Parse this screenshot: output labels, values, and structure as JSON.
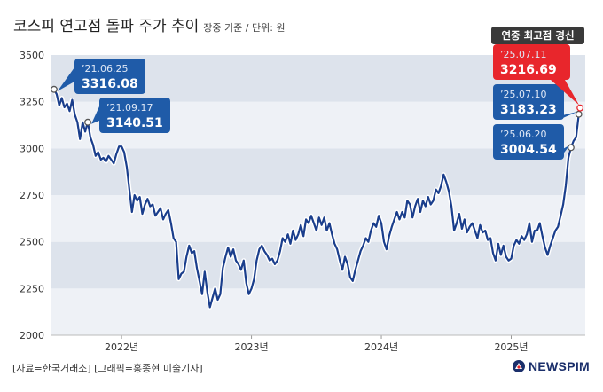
{
  "header": {
    "title": "코스피 연고점 돌파 주가 추이",
    "subtitle": "장중 기준 / 단위: 원"
  },
  "footer": {
    "source": "[자료=한국거래소] [그래픽=홍종현 미술기자]",
    "logo": "NEWSPIM"
  },
  "chart_data": {
    "type": "line",
    "title": "코스피 연고점 돌파 주가 추이",
    "subtitle": "장중 기준 / 단위: 원",
    "ylim": [
      2000,
      3500
    ],
    "yticks": [
      2000,
      2250,
      2500,
      2750,
      3000,
      3250,
      3500
    ],
    "xticks": [
      {
        "label": "2022년",
        "value": 2022.0
      },
      {
        "label": "2023년",
        "value": 2023.0
      },
      {
        "label": "2024년",
        "value": 2024.0
      },
      {
        "label": "2025년",
        "value": 2025.0
      }
    ],
    "xlim": [
      2021.46,
      2025.57
    ],
    "grid": true,
    "colors": {
      "line": "#1a3e8c",
      "callout": "#1f5ba8",
      "highlight": "#e8262c",
      "band_dark": "#dde3ec",
      "band_light": "#eef1f6"
    },
    "series": [
      {
        "points": [
          [
            2021.48,
            3316
          ],
          [
            2021.5,
            3290
          ],
          [
            2021.52,
            3230
          ],
          [
            2021.54,
            3270
          ],
          [
            2021.56,
            3220
          ],
          [
            2021.58,
            3240
          ],
          [
            2021.6,
            3200
          ],
          [
            2021.62,
            3260
          ],
          [
            2021.64,
            3180
          ],
          [
            2021.66,
            3140
          ],
          [
            2021.68,
            3050
          ],
          [
            2021.7,
            3140
          ],
          [
            2021.72,
            3090
          ],
          [
            2021.74,
            3141
          ],
          [
            2021.76,
            3060
          ],
          [
            2021.78,
            3020
          ],
          [
            2021.8,
            2960
          ],
          [
            2021.82,
            2980
          ],
          [
            2021.84,
            2940
          ],
          [
            2021.86,
            2950
          ],
          [
            2021.88,
            2930
          ],
          [
            2021.9,
            2960
          ],
          [
            2021.92,
            2940
          ],
          [
            2021.94,
            2920
          ],
          [
            2021.96,
            2970
          ],
          [
            2021.98,
            3010
          ],
          [
            2022.0,
            3010
          ],
          [
            2022.02,
            2980
          ],
          [
            2022.04,
            2900
          ],
          [
            2022.06,
            2780
          ],
          [
            2022.08,
            2660
          ],
          [
            2022.1,
            2750
          ],
          [
            2022.12,
            2720
          ],
          [
            2022.14,
            2740
          ],
          [
            2022.16,
            2650
          ],
          [
            2022.18,
            2700
          ],
          [
            2022.2,
            2730
          ],
          [
            2022.22,
            2690
          ],
          [
            2022.24,
            2700
          ],
          [
            2022.26,
            2640
          ],
          [
            2022.28,
            2660
          ],
          [
            2022.3,
            2680
          ],
          [
            2022.32,
            2620
          ],
          [
            2022.34,
            2650
          ],
          [
            2022.36,
            2670
          ],
          [
            2022.38,
            2600
          ],
          [
            2022.4,
            2520
          ],
          [
            2022.42,
            2500
          ],
          [
            2022.44,
            2300
          ],
          [
            2022.46,
            2330
          ],
          [
            2022.48,
            2340
          ],
          [
            2022.5,
            2420
          ],
          [
            2022.52,
            2480
          ],
          [
            2022.54,
            2440
          ],
          [
            2022.56,
            2450
          ],
          [
            2022.58,
            2360
          ],
          [
            2022.6,
            2290
          ],
          [
            2022.62,
            2220
          ],
          [
            2022.64,
            2340
          ],
          [
            2022.66,
            2230
          ],
          [
            2022.68,
            2150
          ],
          [
            2022.7,
            2200
          ],
          [
            2022.72,
            2250
          ],
          [
            2022.74,
            2190
          ],
          [
            2022.76,
            2220
          ],
          [
            2022.78,
            2360
          ],
          [
            2022.8,
            2420
          ],
          [
            2022.82,
            2470
          ],
          [
            2022.84,
            2420
          ],
          [
            2022.86,
            2460
          ],
          [
            2022.88,
            2400
          ],
          [
            2022.9,
            2380
          ],
          [
            2022.92,
            2350
          ],
          [
            2022.94,
            2400
          ],
          [
            2022.96,
            2280
          ],
          [
            2022.98,
            2220
          ],
          [
            2023.0,
            2250
          ],
          [
            2023.02,
            2300
          ],
          [
            2023.04,
            2400
          ],
          [
            2023.06,
            2460
          ],
          [
            2023.08,
            2480
          ],
          [
            2023.1,
            2450
          ],
          [
            2023.12,
            2430
          ],
          [
            2023.14,
            2400
          ],
          [
            2023.16,
            2410
          ],
          [
            2023.18,
            2380
          ],
          [
            2023.2,
            2400
          ],
          [
            2023.22,
            2450
          ],
          [
            2023.24,
            2520
          ],
          [
            2023.26,
            2500
          ],
          [
            2023.28,
            2540
          ],
          [
            2023.3,
            2490
          ],
          [
            2023.32,
            2560
          ],
          [
            2023.34,
            2510
          ],
          [
            2023.36,
            2540
          ],
          [
            2023.38,
            2590
          ],
          [
            2023.4,
            2530
          ],
          [
            2023.42,
            2620
          ],
          [
            2023.44,
            2600
          ],
          [
            2023.46,
            2640
          ],
          [
            2023.48,
            2600
          ],
          [
            2023.5,
            2560
          ],
          [
            2023.52,
            2630
          ],
          [
            2023.54,
            2590
          ],
          [
            2023.56,
            2630
          ],
          [
            2023.58,
            2560
          ],
          [
            2023.6,
            2600
          ],
          [
            2023.62,
            2540
          ],
          [
            2023.64,
            2490
          ],
          [
            2023.66,
            2460
          ],
          [
            2023.68,
            2400
          ],
          [
            2023.7,
            2350
          ],
          [
            2023.72,
            2420
          ],
          [
            2023.74,
            2380
          ],
          [
            2023.76,
            2310
          ],
          [
            2023.78,
            2290
          ],
          [
            2023.8,
            2350
          ],
          [
            2023.82,
            2400
          ],
          [
            2023.84,
            2450
          ],
          [
            2023.86,
            2480
          ],
          [
            2023.88,
            2520
          ],
          [
            2023.9,
            2500
          ],
          [
            2023.92,
            2560
          ],
          [
            2023.94,
            2600
          ],
          [
            2023.96,
            2580
          ],
          [
            2023.98,
            2640
          ],
          [
            2024.0,
            2600
          ],
          [
            2024.02,
            2500
          ],
          [
            2024.04,
            2460
          ],
          [
            2024.06,
            2530
          ],
          [
            2024.08,
            2580
          ],
          [
            2024.1,
            2620
          ],
          [
            2024.12,
            2660
          ],
          [
            2024.14,
            2620
          ],
          [
            2024.16,
            2660
          ],
          [
            2024.18,
            2630
          ],
          [
            2024.2,
            2720
          ],
          [
            2024.22,
            2700
          ],
          [
            2024.24,
            2630
          ],
          [
            2024.26,
            2690
          ],
          [
            2024.28,
            2730
          ],
          [
            2024.3,
            2660
          ],
          [
            2024.32,
            2720
          ],
          [
            2024.34,
            2690
          ],
          [
            2024.36,
            2740
          ],
          [
            2024.38,
            2700
          ],
          [
            2024.4,
            2720
          ],
          [
            2024.42,
            2780
          ],
          [
            2024.44,
            2760
          ],
          [
            2024.46,
            2800
          ],
          [
            2024.48,
            2860
          ],
          [
            2024.5,
            2820
          ],
          [
            2024.52,
            2770
          ],
          [
            2024.54,
            2690
          ],
          [
            2024.56,
            2560
          ],
          [
            2024.58,
            2600
          ],
          [
            2024.6,
            2650
          ],
          [
            2024.62,
            2570
          ],
          [
            2024.64,
            2620
          ],
          [
            2024.66,
            2550
          ],
          [
            2024.68,
            2580
          ],
          [
            2024.7,
            2600
          ],
          [
            2024.72,
            2560
          ],
          [
            2024.74,
            2520
          ],
          [
            2024.76,
            2590
          ],
          [
            2024.78,
            2550
          ],
          [
            2024.8,
            2560
          ],
          [
            2024.82,
            2510
          ],
          [
            2024.84,
            2520
          ],
          [
            2024.86,
            2440
          ],
          [
            2024.88,
            2400
          ],
          [
            2024.9,
            2490
          ],
          [
            2024.92,
            2430
          ],
          [
            2024.94,
            2480
          ],
          [
            2024.96,
            2420
          ],
          [
            2024.98,
            2400
          ],
          [
            2025.0,
            2410
          ],
          [
            2025.02,
            2480
          ],
          [
            2025.04,
            2510
          ],
          [
            2025.06,
            2490
          ],
          [
            2025.08,
            2530
          ],
          [
            2025.1,
            2510
          ],
          [
            2025.12,
            2540
          ],
          [
            2025.14,
            2600
          ],
          [
            2025.16,
            2500
          ],
          [
            2025.18,
            2560
          ],
          [
            2025.2,
            2560
          ],
          [
            2025.22,
            2600
          ],
          [
            2025.24,
            2530
          ],
          [
            2025.26,
            2470
          ],
          [
            2025.28,
            2430
          ],
          [
            2025.3,
            2480
          ],
          [
            2025.32,
            2520
          ],
          [
            2025.34,
            2560
          ],
          [
            2025.36,
            2580
          ],
          [
            2025.38,
            2640
          ],
          [
            2025.4,
            2700
          ],
          [
            2025.42,
            2800
          ],
          [
            2025.44,
            2950
          ],
          [
            2025.46,
            3004.54
          ],
          [
            2025.48,
            3040
          ],
          [
            2025.5,
            3060
          ],
          [
            2025.52,
            3183.23
          ],
          [
            2025.53,
            3216.69
          ]
        ]
      }
    ],
    "annotations": [
      {
        "date": "’21.06.25",
        "value_label": "3316.08",
        "x": 2021.48,
        "y": 3316.08,
        "style": "blue"
      },
      {
        "date": "’21.09.17",
        "value_label": "3140.51",
        "x": 2021.74,
        "y": 3140.51,
        "style": "blue"
      },
      {
        "date": "’25.06.20",
        "value_label": "3004.54",
        "x": 2025.46,
        "y": 3004.54,
        "style": "blue"
      },
      {
        "date": "’25.07.10",
        "value_label": "3183.23",
        "x": 2025.52,
        "y": 3183.23,
        "style": "blue"
      },
      {
        "date": "’25.07.11",
        "value_label": "3216.69",
        "x": 2025.53,
        "y": 3216.69,
        "style": "red",
        "header": "연중 최고점 경신"
      }
    ]
  }
}
